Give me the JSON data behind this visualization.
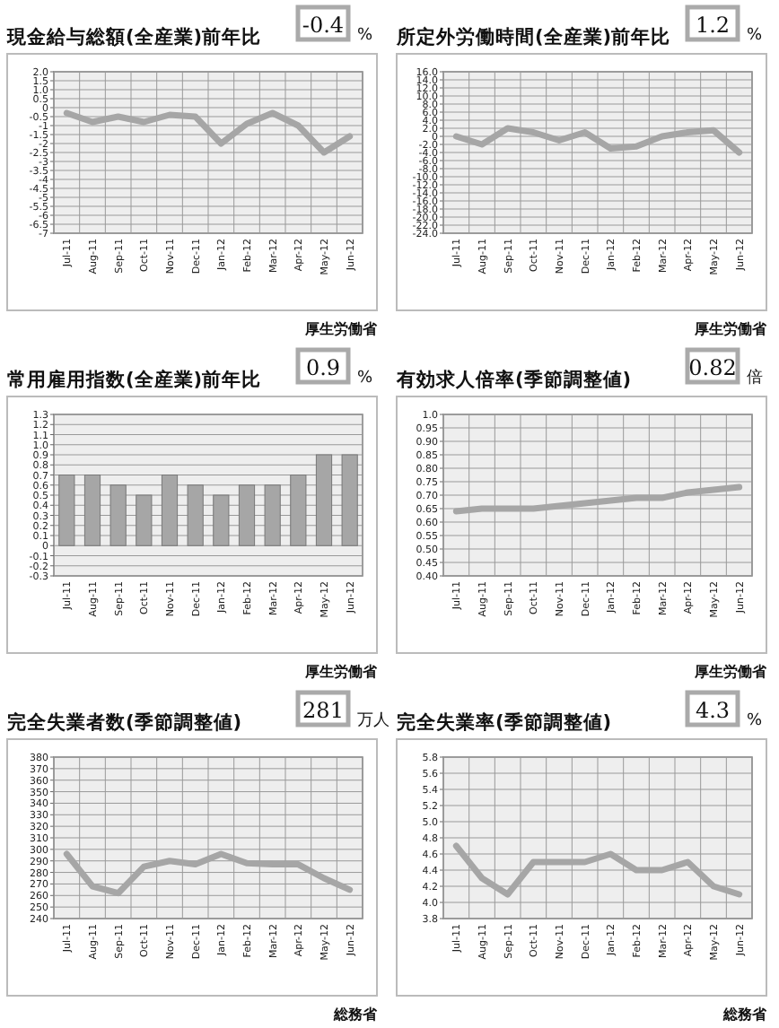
{
  "chart_data": [
    {
      "type": "line",
      "title": "現金給与総額(全産業)前年比",
      "categories": [
        "Jul-11",
        "Aug-11",
        "Sep-11",
        "Oct-11",
        "Nov-11",
        "Dec-11",
        "Jan-12",
        "Feb-12",
        "Mar-12",
        "Apr-12",
        "May-12",
        "Jun-12"
      ],
      "series": [
        {
          "color": "#a6a6a6",
          "values": [
            -0.3,
            -0.8,
            -0.5,
            -0.8,
            -0.4,
            -0.5,
            -2.0,
            -0.9,
            -0.3,
            -1.0,
            -2.5,
            -1.6
          ]
        }
      ],
      "ylim": [
        -7,
        2
      ],
      "yticks": [
        -7,
        -6.5,
        -6,
        -5.5,
        -5,
        -4.5,
        -4,
        -3.5,
        -3,
        -2.5,
        -2,
        -1.5,
        -1,
        -0.5,
        0,
        0.5,
        {
          "value": 1,
          "label": "1.0"
        },
        1.5,
        {
          "value": 2,
          "label": "2.0"
        }
      ],
      "grid": true,
      "annotations": [
        "-0.4",
        "%",
        "厚生労働省"
      ]
    },
    {
      "type": "line",
      "title": "所定外労働時間(全産業)前年比",
      "categories": [
        "Jul-11",
        "Aug-11",
        "Sep-11",
        "Oct-11",
        "Nov-11",
        "Dec-11",
        "Jan-12",
        "Feb-12",
        "Mar-12",
        "Apr-12",
        "May-12",
        "Jun-12"
      ],
      "series": [
        {
          "color": "#a6a6a6",
          "values": [
            0,
            -2,
            2,
            1,
            -1,
            1,
            -3,
            -2.5,
            0,
            1,
            1.5,
            -4
          ]
        }
      ],
      "ylim": [
        -24,
        16
      ],
      "yticks": [
        {
          "value": -24,
          "label": "-24.0"
        },
        {
          "value": -22,
          "label": "-22.0"
        },
        {
          "value": -20,
          "label": "-20.0"
        },
        {
          "value": -18,
          "label": "-18.0"
        },
        {
          "value": -16,
          "label": "-16.0"
        },
        {
          "value": -14,
          "label": "-14.0"
        },
        {
          "value": -12,
          "label": "-12.0"
        },
        {
          "value": -10,
          "label": "-10.0"
        },
        {
          "value": -8,
          "label": "-8.0"
        },
        {
          "value": -6,
          "label": "-6.0"
        },
        {
          "value": -4,
          "label": "-4.0"
        },
        {
          "value": -2,
          "label": "-2.0"
        },
        0,
        {
          "value": 2,
          "label": "2.0"
        },
        {
          "value": 4,
          "label": "4.0"
        },
        {
          "value": 6,
          "label": "6.0"
        },
        {
          "value": 8,
          "label": "8.0"
        },
        {
          "value": 10,
          "label": "10.0"
        },
        {
          "value": 12,
          "label": "12.0"
        },
        {
          "value": 14,
          "label": "14.0"
        },
        {
          "value": 16,
          "label": "16.0"
        }
      ],
      "grid": true,
      "annotations": [
        "1.2",
        "%",
        "厚生労働省"
      ]
    },
    {
      "type": "bar",
      "title": "常用雇用指数(全産業)前年比",
      "categories": [
        "Jul-11",
        "Aug-11",
        "Sep-11",
        "Oct-11",
        "Nov-11",
        "Dec-11",
        "Jan-12",
        "Feb-12",
        "Mar-12",
        "Apr-12",
        "May-12",
        "Jun-12"
      ],
      "series": [
        {
          "color": "#a6a6a6",
          "values": [
            0.7,
            0.7,
            0.6,
            0.5,
            0.7,
            0.6,
            0.5,
            0.6,
            0.6,
            0.7,
            0.9,
            0.9
          ]
        }
      ],
      "ylim": [
        -0.3,
        1.3
      ],
      "yticks": [
        -0.3,
        -0.2,
        -0.1,
        0,
        0.1,
        0.2,
        0.3,
        0.4,
        0.5,
        0.6,
        0.7,
        0.8,
        0.9,
        {
          "value": 1,
          "label": "1.0"
        },
        1.1,
        1.2,
        1.3
      ],
      "grid": "y",
      "annotations": [
        "0.9",
        "%",
        "厚生労働省"
      ]
    },
    {
      "type": "line",
      "title": "有効求人倍率(季節調整値)",
      "categories": [
        "Jul-11",
        "Aug-11",
        "Sep-11",
        "Oct-11",
        "Nov-11",
        "Dec-11",
        "Jan-12",
        "Feb-12",
        "Mar-12",
        "Apr-12",
        "May-12",
        "Jun-12"
      ],
      "series": [
        {
          "color": "#a6a6a6",
          "values": [
            0.64,
            0.65,
            0.65,
            0.65,
            0.66,
            0.67,
            0.68,
            0.69,
            0.69,
            0.71,
            0.72,
            0.73
          ]
        }
      ],
      "ylim": [
        0.4,
        1
      ],
      "yticks": [
        {
          "value": 0.4,
          "label": "0.40"
        },
        0.45,
        {
          "value": 0.5,
          "label": "0.50"
        },
        0.55,
        {
          "value": 0.6,
          "label": "0.60"
        },
        0.65,
        {
          "value": 0.7,
          "label": "0.70"
        },
        0.75,
        {
          "value": 0.8,
          "label": "0.80"
        },
        0.85,
        {
          "value": 0.9,
          "label": "0.90"
        },
        0.95,
        {
          "value": 1,
          "label": "1.0"
        }
      ],
      "grid": true,
      "annotations": [
        "0.82",
        "倍",
        "厚生労働省"
      ]
    },
    {
      "type": "line",
      "title": "完全失業者数(季節調整値)",
      "categories": [
        "Jul-11",
        "Aug-11",
        "Sep-11",
        "Oct-11",
        "Nov-11",
        "Dec-11",
        "Jan-12",
        "Feb-12",
        "Mar-12",
        "Apr-12",
        "May-12",
        "Jun-12"
      ],
      "series": [
        {
          "color": "#a6a6a6",
          "values": [
            296,
            268,
            262,
            285,
            290,
            287,
            296,
            288,
            287,
            287,
            275,
            265
          ]
        }
      ],
      "ylim": [
        240,
        380
      ],
      "yticks": [
        240,
        250,
        260,
        270,
        280,
        290,
        300,
        310,
        320,
        330,
        340,
        350,
        360,
        370,
        380
      ],
      "grid": true,
      "annotations": [
        "281",
        "万人",
        "総務省"
      ]
    },
    {
      "type": "line",
      "title": "完全失業率(季節調整値)",
      "categories": [
        "Jul-11",
        "Aug-11",
        "Sep-11",
        "Oct-11",
        "Nov-11",
        "Dec-11",
        "Jan-12",
        "Feb-12",
        "Mar-12",
        "Apr-12",
        "May-12",
        "Jun-12"
      ],
      "series": [
        {
          "color": "#a6a6a6",
          "values": [
            4.7,
            4.3,
            4.1,
            4.5,
            4.5,
            4.5,
            4.6,
            4.4,
            4.4,
            4.5,
            4.2,
            4.1
          ]
        }
      ],
      "ylim": [
        3.8,
        5.8
      ],
      "yticks": [
        3.8,
        {
          "value": 4,
          "label": "4.0"
        },
        4.2,
        4.4,
        4.6,
        4.8,
        {
          "value": 5,
          "label": "5.0"
        },
        5.2,
        5.4,
        5.6,
        5.8
      ],
      "grid": true,
      "annotations": [
        "4.3",
        "%",
        "総務省"
      ]
    }
  ]
}
